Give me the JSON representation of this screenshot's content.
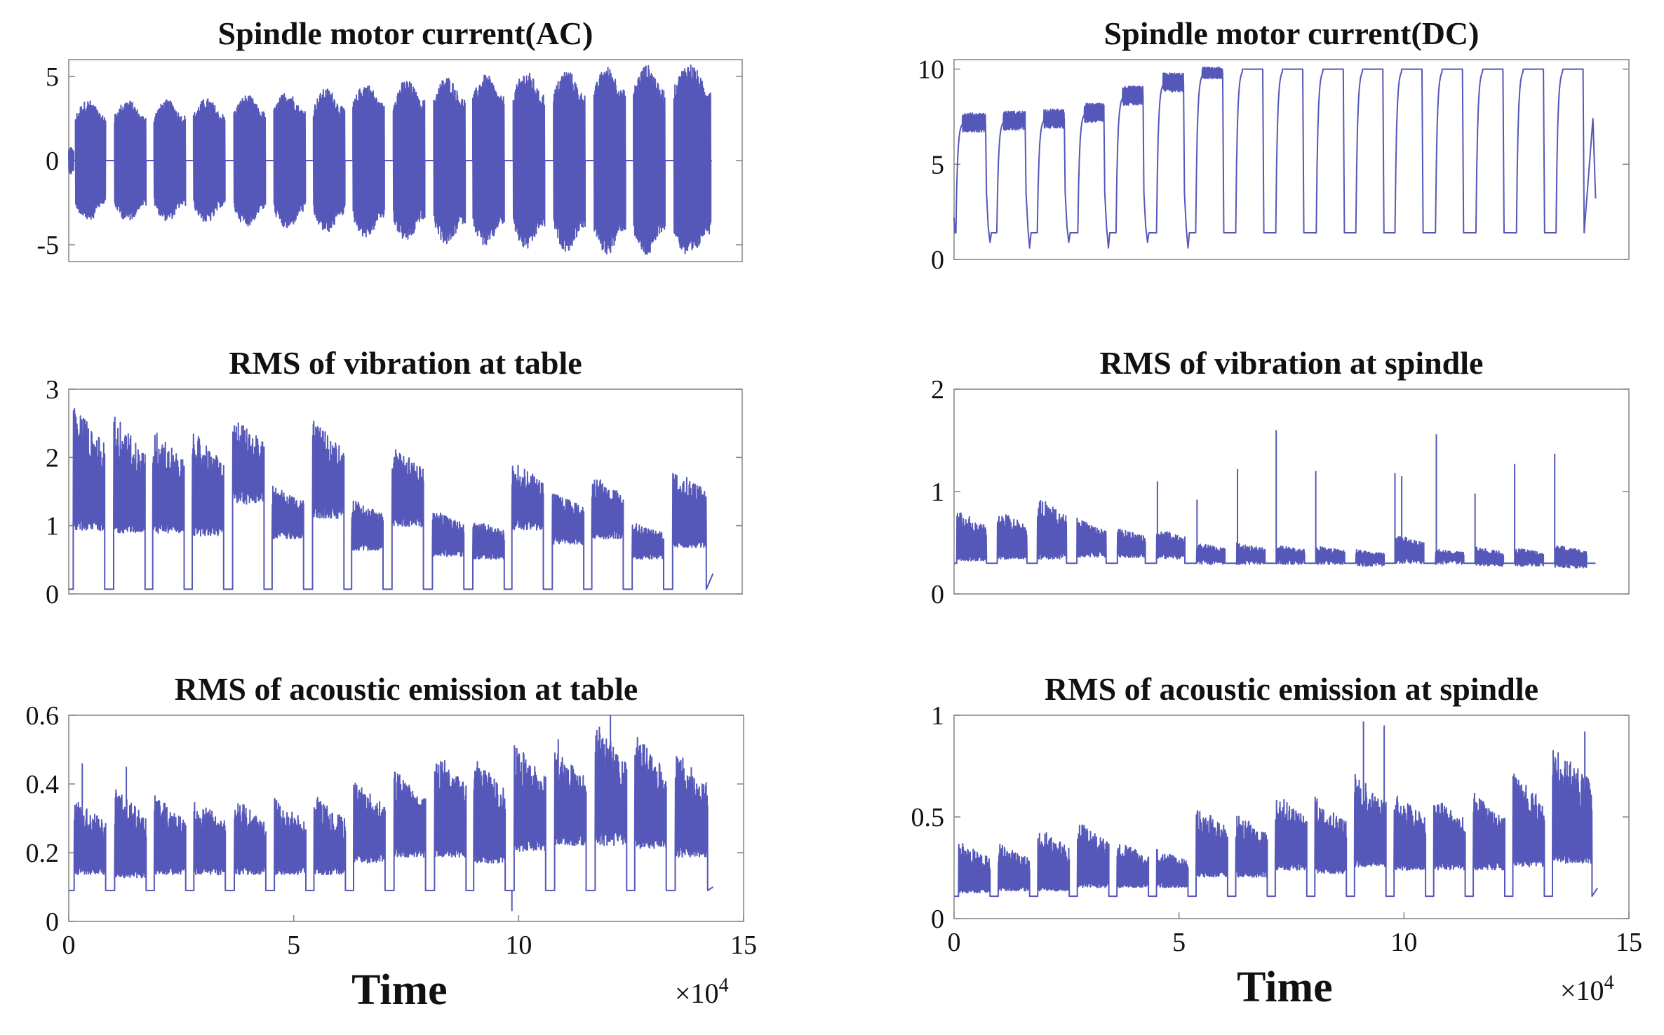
{
  "figure": {
    "series_color": "#5558b8",
    "x_exponent_label": "×10",
    "x_exponent_power": "4"
  },
  "chart_data": [
    {
      "type": "line",
      "id": "ac",
      "title": "Spindle motor current(AC)",
      "xlabel": "",
      "ylabel": "",
      "xlim": [
        0,
        150000
      ],
      "ylim": [
        -6,
        6
      ],
      "yticks": [
        -5,
        0,
        5
      ],
      "ytick_labels": [
        "-5",
        "0",
        "5"
      ],
      "xticks": [],
      "xtick_labels": [],
      "cycles": [
        {
          "start": 0,
          "end": 1100,
          "amp": 0.8
        },
        {
          "start": 1500,
          "end": 8200,
          "amp": 3.6
        },
        {
          "start": 10200,
          "end": 17200,
          "amp": 3.6
        },
        {
          "start": 19000,
          "end": 26000,
          "amp": 3.6
        },
        {
          "start": 27800,
          "end": 34800,
          "amp": 3.7
        },
        {
          "start": 36800,
          "end": 43800,
          "amp": 3.9
        },
        {
          "start": 45700,
          "end": 52700,
          "amp": 4.1
        },
        {
          "start": 54500,
          "end": 61500,
          "amp": 4.3
        },
        {
          "start": 63300,
          "end": 70300,
          "amp": 4.6
        },
        {
          "start": 72300,
          "end": 79300,
          "amp": 4.8
        },
        {
          "start": 81300,
          "end": 88300,
          "amp": 5.0
        },
        {
          "start": 90000,
          "end": 97000,
          "amp": 5.1
        },
        {
          "start": 99000,
          "end": 106000,
          "amp": 5.3
        },
        {
          "start": 108000,
          "end": 115000,
          "amp": 5.4
        },
        {
          "start": 117000,
          "end": 124000,
          "amp": 5.6
        },
        {
          "start": 125800,
          "end": 132800,
          "amp": 5.7
        },
        {
          "start": 134800,
          "end": 143000,
          "amp": 5.8
        }
      ]
    },
    {
      "type": "line",
      "id": "dc",
      "title": "Spindle motor current(DC)",
      "xlabel": "",
      "ylabel": "",
      "xlim": [
        0,
        150000
      ],
      "ylim": [
        0,
        10.5
      ],
      "yticks": [
        0,
        5,
        10
      ],
      "ytick_labels": [
        "0",
        "5",
        "10"
      ],
      "xticks": [],
      "xtick_labels": [],
      "baseline": 1.4,
      "cycles": [
        {
          "start": 400,
          "end": 7000,
          "level": 7.2,
          "noise": 0.5
        },
        {
          "start": 9500,
          "end": 15800,
          "level": 7.3,
          "noise": 0.5
        },
        {
          "start": 18500,
          "end": 24500,
          "level": 7.4,
          "noise": 0.5
        },
        {
          "start": 27500,
          "end": 33300,
          "level": 7.7,
          "noise": 0.5
        },
        {
          "start": 36000,
          "end": 42000,
          "level": 8.6,
          "noise": 0.5
        },
        {
          "start": 45000,
          "end": 51000,
          "level": 9.3,
          "noise": 0.5
        },
        {
          "start": 53700,
          "end": 59700,
          "level": 9.8,
          "noise": 0.3
        },
        {
          "start": 62600,
          "end": 68600,
          "level": 10.0,
          "noise": 0.0
        },
        {
          "start": 71500,
          "end": 77500,
          "level": 10.0,
          "noise": 0.0
        },
        {
          "start": 80500,
          "end": 86500,
          "level": 10.0,
          "noise": 0.0
        },
        {
          "start": 89300,
          "end": 95300,
          "level": 10.0,
          "noise": 0.0
        },
        {
          "start": 98000,
          "end": 104000,
          "level": 10.0,
          "noise": 0.0
        },
        {
          "start": 107000,
          "end": 113000,
          "level": 10.0,
          "noise": 0.0
        },
        {
          "start": 116000,
          "end": 122000,
          "level": 10.0,
          "noise": 0.0
        },
        {
          "start": 125000,
          "end": 131000,
          "level": 10.0,
          "noise": 0.0
        },
        {
          "start": 133800,
          "end": 139800,
          "level": 10.0,
          "noise": 0.0
        }
      ],
      "end_value": 3.2,
      "x_end": 142600
    },
    {
      "type": "line",
      "id": "vib_table",
      "title": "RMS of vibration at table",
      "xlabel": "",
      "ylabel": "",
      "xlim": [
        0,
        150000
      ],
      "ylim": [
        0,
        3
      ],
      "yticks": [
        0,
        1,
        2,
        3
      ],
      "ytick_labels": [
        "0",
        "1",
        "2",
        "3"
      ],
      "xticks": [],
      "xtick_labels": [],
      "baseline": 0.07,
      "cycles": [
        {
          "start": 1000,
          "end": 8000,
          "top": 2.8,
          "bottom": 1.1
        },
        {
          "start": 10000,
          "end": 17000,
          "top": 2.65,
          "bottom": 1.05
        },
        {
          "start": 18700,
          "end": 25700,
          "top": 2.45,
          "bottom": 1.05
        },
        {
          "start": 27500,
          "end": 34500,
          "top": 2.4,
          "bottom": 1.0
        },
        {
          "start": 36500,
          "end": 43500,
          "top": 2.6,
          "bottom": 1.55
        },
        {
          "start": 45300,
          "end": 52300,
          "top": 1.6,
          "bottom": 0.95
        },
        {
          "start": 54300,
          "end": 61300,
          "top": 2.55,
          "bottom": 1.3
        },
        {
          "start": 63000,
          "end": 70000,
          "top": 1.4,
          "bottom": 0.75
        },
        {
          "start": 72000,
          "end": 79000,
          "top": 2.2,
          "bottom": 1.15
        },
        {
          "start": 81000,
          "end": 88000,
          "top": 1.25,
          "bottom": 0.65
        },
        {
          "start": 90000,
          "end": 97000,
          "top": 1.1,
          "bottom": 0.6
        },
        {
          "start": 98700,
          "end": 105700,
          "top": 1.95,
          "bottom": 1.1
        },
        {
          "start": 107700,
          "end": 114700,
          "top": 1.5,
          "bottom": 0.85
        },
        {
          "start": 116500,
          "end": 123500,
          "top": 1.75,
          "bottom": 0.95
        },
        {
          "start": 125500,
          "end": 132500,
          "top": 1.05,
          "bottom": 0.6
        },
        {
          "start": 134500,
          "end": 142000,
          "top": 1.9,
          "bottom": 0.8
        }
      ],
      "end_value": 0.3,
      "x_end": 143500
    },
    {
      "type": "line",
      "id": "vib_spindle",
      "title": "RMS of vibration at spindle",
      "xlabel": "",
      "ylabel": "",
      "xlim": [
        0,
        150000
      ],
      "ylim": [
        0,
        2
      ],
      "yticks": [
        0,
        1,
        2
      ],
      "ytick_labels": [
        "0",
        "1",
        "2"
      ],
      "xticks": [],
      "xtick_labels": [],
      "baseline": 0.3,
      "cycles": [
        {
          "start": 600,
          "end": 7200,
          "top": 0.82,
          "bottom": 0.38
        },
        {
          "start": 9600,
          "end": 16200,
          "top": 0.82,
          "bottom": 0.4
        },
        {
          "start": 18500,
          "end": 25000,
          "top": 0.96,
          "bottom": 0.4
        },
        {
          "start": 27300,
          "end": 33800,
          "top": 0.74,
          "bottom": 0.42
        },
        {
          "start": 36300,
          "end": 42500,
          "top": 0.64,
          "bottom": 0.42
        },
        {
          "start": 45000,
          "end": 51300,
          "top": 0.64,
          "bottom": 0.4
        },
        {
          "start": 53900,
          "end": 60200,
          "top": 0.5,
          "bottom": 0.34
        },
        {
          "start": 62800,
          "end": 69100,
          "top": 0.5,
          "bottom": 0.34
        },
        {
          "start": 71700,
          "end": 77900,
          "top": 0.48,
          "bottom": 0.34
        },
        {
          "start": 80500,
          "end": 86800,
          "top": 0.47,
          "bottom": 0.34
        },
        {
          "start": 89300,
          "end": 95600,
          "top": 0.44,
          "bottom": 0.32
        },
        {
          "start": 98200,
          "end": 104400,
          "top": 0.58,
          "bottom": 0.35
        },
        {
          "start": 107000,
          "end": 113300,
          "top": 0.44,
          "bottom": 0.34
        },
        {
          "start": 115900,
          "end": 122100,
          "top": 0.46,
          "bottom": 0.32
        },
        {
          "start": 124800,
          "end": 131000,
          "top": 0.45,
          "bottom": 0.32
        },
        {
          "start": 133600,
          "end": 140600,
          "top": 0.48,
          "bottom": 0.3
        }
      ],
      "spikes": [
        {
          "x": 45200,
          "y": 1.1
        },
        {
          "x": 54000,
          "y": 0.92
        },
        {
          "x": 63000,
          "y": 1.22
        },
        {
          "x": 71600,
          "y": 1.6
        },
        {
          "x": 80400,
          "y": 1.2
        },
        {
          "x": 98000,
          "y": 1.18
        },
        {
          "x": 99500,
          "y": 1.15
        },
        {
          "x": 107200,
          "y": 1.56
        },
        {
          "x": 115800,
          "y": 0.98
        },
        {
          "x": 124600,
          "y": 1.27
        },
        {
          "x": 133500,
          "y": 1.37
        }
      ],
      "end_value": 0.3,
      "x_end": 142600
    },
    {
      "type": "line",
      "id": "ae_table",
      "title": "RMS of acoustic emission at table",
      "xlabel": "Time",
      "ylabel": "",
      "xlim": [
        0,
        150000
      ],
      "ylim": [
        0,
        0.6
      ],
      "yticks": [
        0,
        0.2,
        0.4,
        0.6
      ],
      "ytick_labels": [
        "0",
        "0.2",
        "0.4",
        "0.6"
      ],
      "xticks": [
        0,
        50000,
        100000,
        150000
      ],
      "xtick_labels": [
        "0",
        "5",
        "10",
        "15"
      ],
      "baseline": 0.09,
      "cycles": [
        {
          "start": 1200,
          "end": 8200,
          "top": 0.36,
          "bottom": 0.16
        },
        {
          "start": 10200,
          "end": 17200,
          "top": 0.39,
          "bottom": 0.15
        },
        {
          "start": 19000,
          "end": 26000,
          "top": 0.37,
          "bottom": 0.16
        },
        {
          "start": 27800,
          "end": 34800,
          "top": 0.37,
          "bottom": 0.16
        },
        {
          "start": 36800,
          "end": 43800,
          "top": 0.36,
          "bottom": 0.16
        },
        {
          "start": 45700,
          "end": 52700,
          "top": 0.36,
          "bottom": 0.16
        },
        {
          "start": 54500,
          "end": 61500,
          "top": 0.37,
          "bottom": 0.16
        },
        {
          "start": 63300,
          "end": 70300,
          "top": 0.41,
          "bottom": 0.2
        },
        {
          "start": 72300,
          "end": 79300,
          "top": 0.44,
          "bottom": 0.22
        },
        {
          "start": 81300,
          "end": 88300,
          "top": 0.5,
          "bottom": 0.22
        },
        {
          "start": 90000,
          "end": 97000,
          "top": 0.48,
          "bottom": 0.2
        },
        {
          "start": 99000,
          "end": 106000,
          "top": 0.52,
          "bottom": 0.24
        },
        {
          "start": 108000,
          "end": 115000,
          "top": 0.5,
          "bottom": 0.26
        },
        {
          "start": 117000,
          "end": 124000,
          "top": 0.58,
          "bottom": 0.26
        },
        {
          "start": 125800,
          "end": 132800,
          "top": 0.56,
          "bottom": 0.25
        },
        {
          "start": 134800,
          "end": 142000,
          "top": 0.5,
          "bottom": 0.22
        }
      ],
      "spikes": [
        {
          "x": 3000,
          "y": 0.46
        },
        {
          "x": 12800,
          "y": 0.45
        },
        {
          "x": 98500,
          "y": 0.03
        },
        {
          "x": 108800,
          "y": 0.53
        },
        {
          "x": 120400,
          "y": 0.6
        }
      ],
      "end_value": 0.1,
      "x_end": 143200
    },
    {
      "type": "line",
      "id": "ae_spindle",
      "title": "RMS of acoustic emission at spindle",
      "xlabel": "Time",
      "ylabel": "",
      "xlim": [
        0,
        150000
      ],
      "ylim": [
        0,
        1
      ],
      "yticks": [
        0,
        0.5,
        1
      ],
      "ytick_labels": [
        "0",
        "0.5",
        "1"
      ],
      "xticks": [
        0,
        50000,
        100000,
        150000
      ],
      "xtick_labels": [
        "0",
        "5",
        "10",
        "15"
      ],
      "baseline": 0.11,
      "cycles": [
        {
          "start": 1000,
          "end": 8000,
          "top": 0.38,
          "bottom": 0.15
        },
        {
          "start": 9800,
          "end": 16800,
          "top": 0.37,
          "bottom": 0.16
        },
        {
          "start": 18600,
          "end": 25600,
          "top": 0.45,
          "bottom": 0.16
        },
        {
          "start": 27400,
          "end": 34400,
          "top": 0.48,
          "bottom": 0.18
        },
        {
          "start": 36200,
          "end": 43200,
          "top": 0.38,
          "bottom": 0.18
        },
        {
          "start": 45000,
          "end": 52000,
          "top": 0.34,
          "bottom": 0.18
        },
        {
          "start": 53800,
          "end": 60800,
          "top": 0.56,
          "bottom": 0.24
        },
        {
          "start": 62600,
          "end": 69600,
          "top": 0.52,
          "bottom": 0.24
        },
        {
          "start": 71400,
          "end": 78400,
          "top": 0.62,
          "bottom": 0.28
        },
        {
          "start": 80200,
          "end": 87200,
          "top": 0.6,
          "bottom": 0.26
        },
        {
          "start": 89000,
          "end": 96000,
          "top": 0.72,
          "bottom": 0.3
        },
        {
          "start": 97800,
          "end": 104800,
          "top": 0.62,
          "bottom": 0.28
        },
        {
          "start": 106600,
          "end": 113600,
          "top": 0.6,
          "bottom": 0.28
        },
        {
          "start": 115400,
          "end": 122400,
          "top": 0.62,
          "bottom": 0.28
        },
        {
          "start": 124200,
          "end": 131200,
          "top": 0.72,
          "bottom": 0.3
        },
        {
          "start": 133000,
          "end": 141800,
          "top": 0.86,
          "bottom": 0.32
        }
      ],
      "spikes": [
        {
          "x": 91000,
          "y": 0.97
        },
        {
          "x": 95600,
          "y": 0.95
        },
        {
          "x": 140200,
          "y": 0.92
        }
      ],
      "end_value": 0.15,
      "x_end": 143000
    }
  ]
}
